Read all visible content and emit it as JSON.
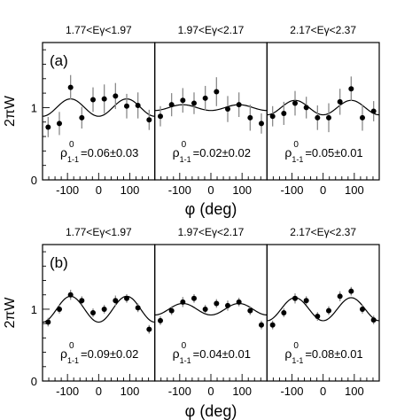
{
  "chart_data": [
    {
      "type": "scatter",
      "panel_label": "(a)",
      "ylabel": "2πW",
      "xlabel": "φ (deg)",
      "xlim": [
        -180,
        180
      ],
      "ylim": [
        0,
        1.9
      ],
      "x_ticks": [
        "-100",
        "0",
        "100"
      ],
      "y_ticks": [
        "0",
        "1"
      ],
      "subpanels": [
        {
          "title": "1.77<Eγ<1.97",
          "rho": "=0.06±0.03",
          "fit_rho": 0.06,
          "points": [
            {
              "x": -162,
              "y": 0.73,
              "err": 0.14
            },
            {
              "x": -126,
              "y": 0.78,
              "err": 0.16
            },
            {
              "x": -90,
              "y": 1.28,
              "err": 0.17
            },
            {
              "x": -54,
              "y": 0.86,
              "err": 0.15
            },
            {
              "x": -18,
              "y": 1.11,
              "err": 0.17
            },
            {
              "x": 18,
              "y": 1.12,
              "err": 0.2
            },
            {
              "x": 54,
              "y": 1.16,
              "err": 0.18
            },
            {
              "x": 90,
              "y": 1.02,
              "err": 0.17
            },
            {
              "x": 126,
              "y": 1.03,
              "err": 0.18
            },
            {
              "x": 162,
              "y": 0.83,
              "err": 0.14
            }
          ]
        },
        {
          "title": "1.97<Eγ<2.17",
          "rho": "=0.02±0.02",
          "fit_rho": 0.02,
          "points": [
            {
              "x": -162,
              "y": 0.88,
              "err": 0.14
            },
            {
              "x": -126,
              "y": 1.04,
              "err": 0.16
            },
            {
              "x": -90,
              "y": 1.1,
              "err": 0.17
            },
            {
              "x": -54,
              "y": 1.06,
              "err": 0.15
            },
            {
              "x": -18,
              "y": 1.13,
              "err": 0.17
            },
            {
              "x": 18,
              "y": 1.22,
              "err": 0.2
            },
            {
              "x": 54,
              "y": 0.98,
              "err": 0.18
            },
            {
              "x": 90,
              "y": 1.04,
              "err": 0.17
            },
            {
              "x": 126,
              "y": 0.86,
              "err": 0.18
            },
            {
              "x": 162,
              "y": 0.78,
              "err": 0.14
            }
          ]
        },
        {
          "title": "2.17<Eγ<2.37",
          "rho": "=0.05±0.01",
          "fit_rho": 0.05,
          "points": [
            {
              "x": -162,
              "y": 0.88,
              "err": 0.14
            },
            {
              "x": -126,
              "y": 0.92,
              "err": 0.16
            },
            {
              "x": -90,
              "y": 1.06,
              "err": 0.17
            },
            {
              "x": -54,
              "y": 1.0,
              "err": 0.15
            },
            {
              "x": -18,
              "y": 0.86,
              "err": 0.17
            },
            {
              "x": 18,
              "y": 0.86,
              "err": 0.2
            },
            {
              "x": 54,
              "y": 1.08,
              "err": 0.18
            },
            {
              "x": 90,
              "y": 1.26,
              "err": 0.17
            },
            {
              "x": 126,
              "y": 0.86,
              "err": 0.18
            },
            {
              "x": 162,
              "y": 0.95,
              "err": 0.14
            }
          ]
        }
      ]
    },
    {
      "type": "scatter",
      "panel_label": "(b)",
      "ylabel": "2πW",
      "xlabel": "φ (deg)",
      "xlim": [
        -180,
        180
      ],
      "ylim": [
        0,
        1.9
      ],
      "x_ticks": [
        "-100",
        "0",
        "100"
      ],
      "y_ticks": [
        "0",
        "1"
      ],
      "subpanels": [
        {
          "title": "1.77<Eγ<1.97",
          "rho": "=0.09±0.02",
          "fit_rho": 0.09,
          "points": [
            {
              "x": -162,
              "y": 0.82,
              "err": 0.06
            },
            {
              "x": -126,
              "y": 1.0,
              "err": 0.06
            },
            {
              "x": -90,
              "y": 1.2,
              "err": 0.07
            },
            {
              "x": -54,
              "y": 1.12,
              "err": 0.06
            },
            {
              "x": -18,
              "y": 0.95,
              "err": 0.06
            },
            {
              "x": 18,
              "y": 1.0,
              "err": 0.06
            },
            {
              "x": 54,
              "y": 1.12,
              "err": 0.07
            },
            {
              "x": 90,
              "y": 1.15,
              "err": 0.06
            },
            {
              "x": 126,
              "y": 1.02,
              "err": 0.06
            },
            {
              "x": 162,
              "y": 0.72,
              "err": 0.06
            }
          ]
        },
        {
          "title": "1.97<Eγ<2.17",
          "rho": "=0.04±0.01",
          "fit_rho": 0.04,
          "points": [
            {
              "x": -162,
              "y": 0.84,
              "err": 0.06
            },
            {
              "x": -126,
              "y": 0.98,
              "err": 0.06
            },
            {
              "x": -90,
              "y": 1.1,
              "err": 0.07
            },
            {
              "x": -54,
              "y": 1.15,
              "err": 0.06
            },
            {
              "x": -18,
              "y": 1.0,
              "err": 0.06
            },
            {
              "x": 18,
              "y": 1.08,
              "err": 0.06
            },
            {
              "x": 54,
              "y": 1.05,
              "err": 0.07
            },
            {
              "x": 90,
              "y": 1.1,
              "err": 0.06
            },
            {
              "x": 126,
              "y": 0.98,
              "err": 0.06
            },
            {
              "x": 162,
              "y": 0.78,
              "err": 0.06
            }
          ]
        },
        {
          "title": "2.17<Eγ<2.37",
          "rho": "=0.08±0.01",
          "fit_rho": 0.08,
          "points": [
            {
              "x": -162,
              "y": 0.78,
              "err": 0.06
            },
            {
              "x": -126,
              "y": 0.95,
              "err": 0.06
            },
            {
              "x": -90,
              "y": 1.15,
              "err": 0.07
            },
            {
              "x": -54,
              "y": 1.12,
              "err": 0.06
            },
            {
              "x": -18,
              "y": 0.9,
              "err": 0.06
            },
            {
              "x": 18,
              "y": 0.98,
              "err": 0.06
            },
            {
              "x": 54,
              "y": 1.18,
              "err": 0.07
            },
            {
              "x": 90,
              "y": 1.25,
              "err": 0.06
            },
            {
              "x": 126,
              "y": 1.0,
              "err": 0.06
            },
            {
              "x": 162,
              "y": 0.85,
              "err": 0.06
            }
          ]
        }
      ]
    }
  ]
}
